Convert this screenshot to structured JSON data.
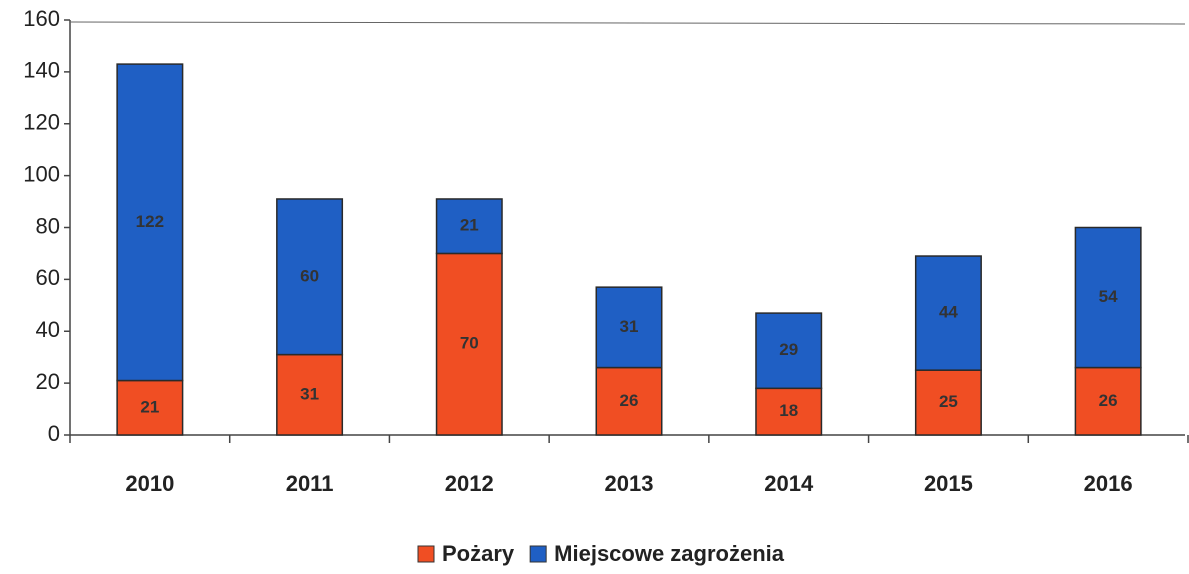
{
  "chart_data": {
    "type": "stacked_bar",
    "categories": [
      "2010",
      "2011",
      "2012",
      "2013",
      "2014",
      "2015",
      "2016"
    ],
    "series": [
      {
        "name": "Pożary",
        "color": "#f04e23",
        "values": [
          21,
          31,
          70,
          26,
          18,
          25,
          26
        ]
      },
      {
        "name": "Miejscowe zagrożenia",
        "color": "#1f5fc4",
        "values": [
          122,
          60,
          21,
          31,
          29,
          44,
          54
        ]
      }
    ],
    "ylim": [
      0,
      160
    ],
    "yticks": [
      0,
      20,
      40,
      60,
      80,
      100,
      120,
      140,
      160
    ],
    "legend": "bottom"
  }
}
